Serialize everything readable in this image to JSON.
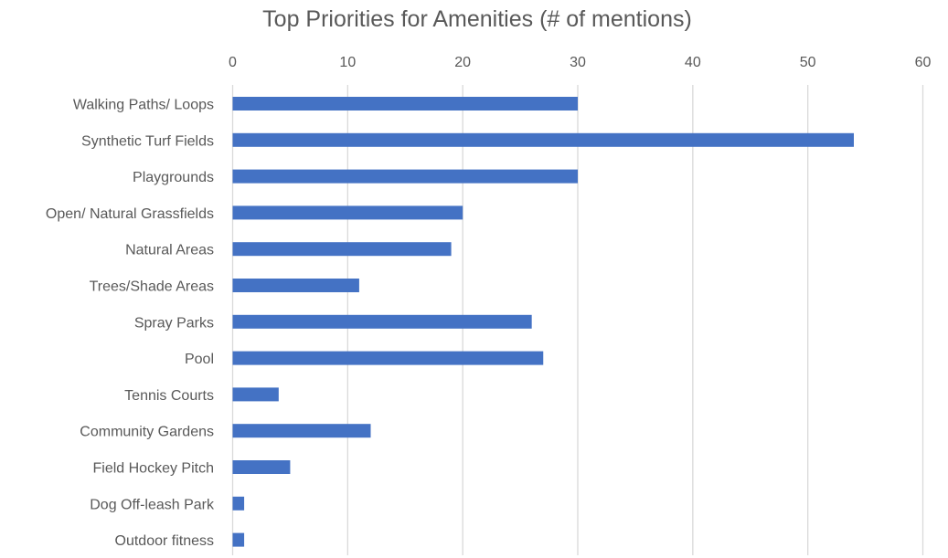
{
  "chart_data": {
    "type": "bar",
    "orientation": "horizontal",
    "title": "Top Priorities for Amenities (# of mentions)",
    "xlabel": "",
    "ylabel": "",
    "xlim": [
      0,
      60
    ],
    "x_ticks": [
      0,
      10,
      20,
      30,
      40,
      50,
      60
    ],
    "x_axis_position": "top",
    "grid": true,
    "legend": "none",
    "bar_color": "#4472c4",
    "grid_color": "#d9d9d9",
    "text_color": "#595959",
    "categories": [
      "Walking Paths/ Loops",
      "Synthetic Turf Fields",
      "Playgrounds",
      "Open/ Natural Grassfields",
      "Natural Areas",
      "Trees/Shade Areas",
      "Spray Parks",
      "Pool",
      "Tennis Courts",
      "Community Gardens",
      "Field Hockey Pitch",
      "Dog Off-leash Park",
      "Outdoor fitness"
    ],
    "values": [
      30,
      54,
      30,
      20,
      19,
      11,
      26,
      27,
      4,
      12,
      5,
      1,
      1
    ]
  }
}
